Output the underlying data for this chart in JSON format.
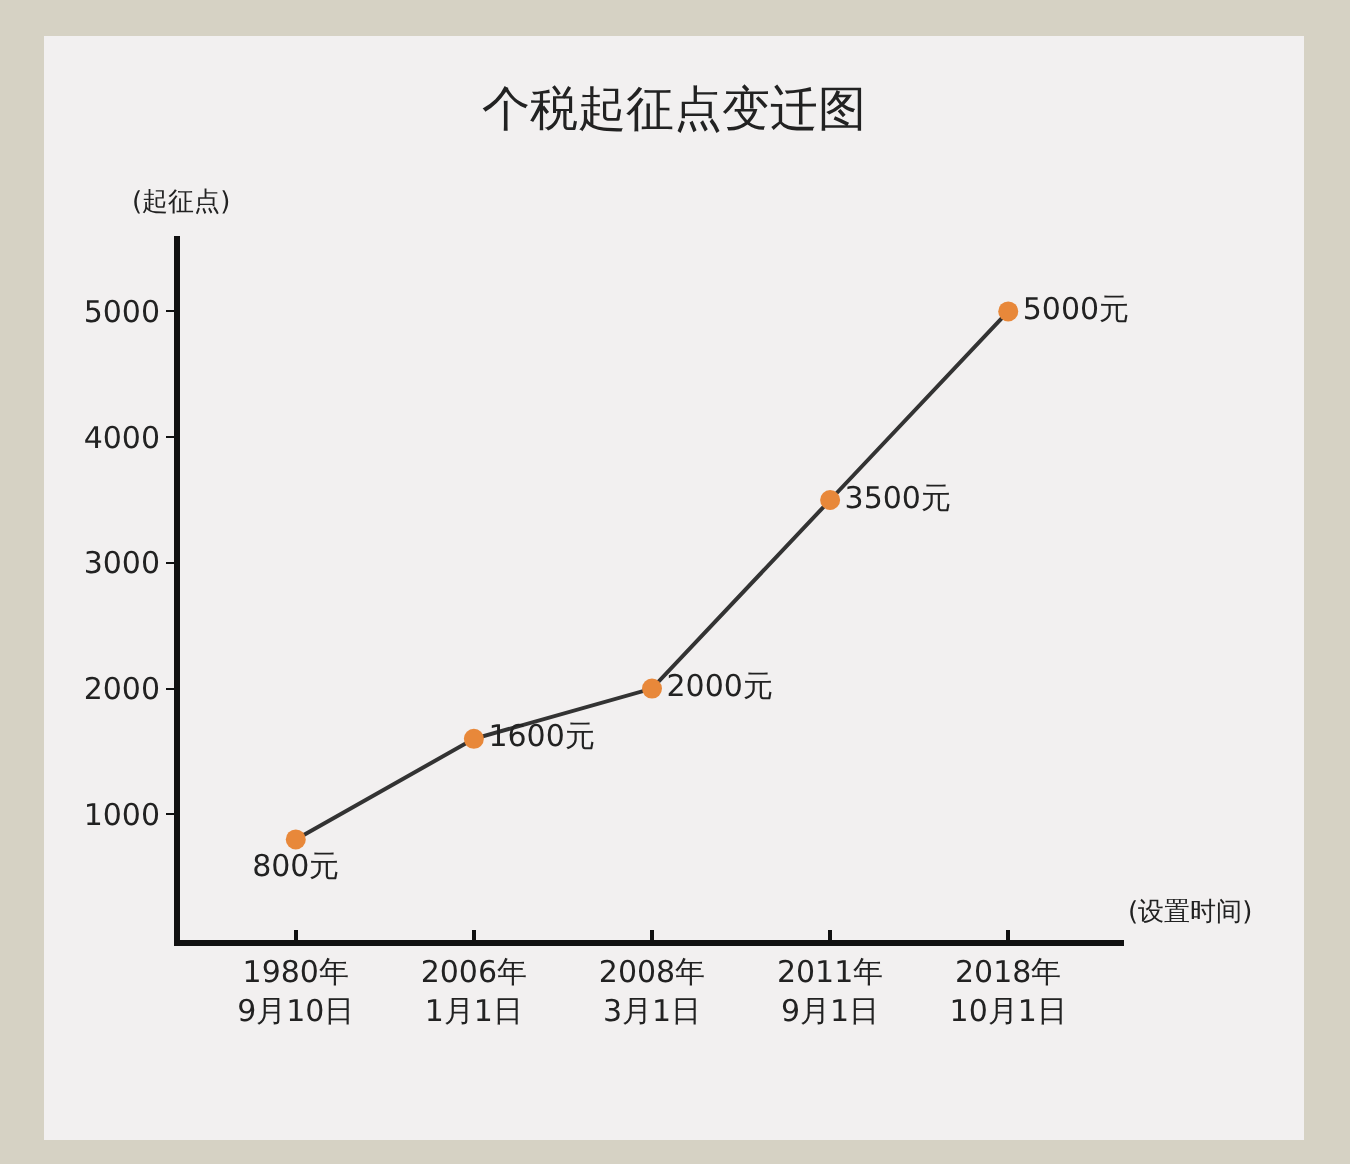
{
  "chart_data": {
    "type": "line",
    "title": "个税起征点变迁图",
    "xlabel": "(设置时间)",
    "ylabel": "(起征点)",
    "categories": [
      "1980年\n9月10日",
      "2006年\n1月1日",
      "2008年\n3月1日",
      "2011年\n9月1日",
      "2018年\n10月1日"
    ],
    "series": [
      {
        "color": "#333333",
        "colors": [
          "#e8883a",
          "#e8883a",
          "#e8883a",
          "#e8883a",
          "#e8883a"
        ],
        "values": [
          800,
          1600,
          2000,
          3500,
          5000
        ],
        "value_labels": [
          "800元",
          "1600元",
          "2000元",
          "3500元",
          "5000元"
        ]
      }
    ],
    "marker": "circle",
    "line_style": "solid",
    "ylim": [
      0,
      5600
    ],
    "yticks": [
      1000,
      2000,
      3000,
      4000,
      5000
    ]
  }
}
